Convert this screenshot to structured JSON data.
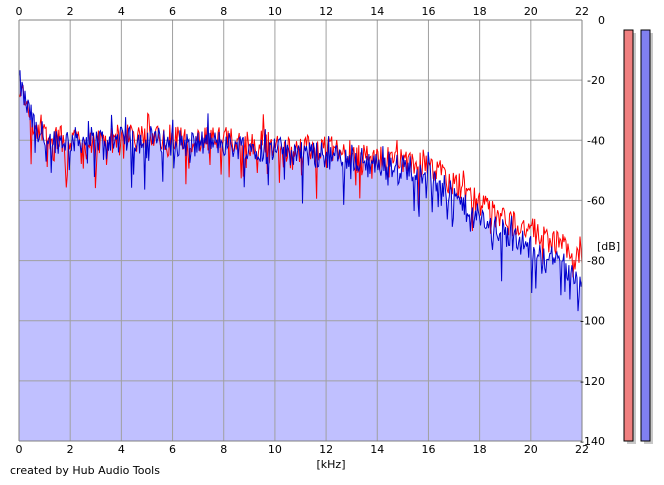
{
  "chart_data": {
    "type": "area",
    "title": "",
    "xlabel": "[kHz]",
    "ylabel": "[dB]",
    "xlim": [
      0,
      22
    ],
    "ylim": [
      -140,
      0
    ],
    "x_ticks": [
      "0",
      "2",
      "4",
      "6",
      "8",
      "10",
      "12",
      "14",
      "16",
      "18",
      "20",
      "22"
    ],
    "y_ticks": [
      "0",
      "-20",
      "-40",
      "-60",
      "-80",
      "-100",
      "-120",
      "-140"
    ],
    "grid": true,
    "x_axis_position": "top and bottom",
    "y_axis_position": "right",
    "series": [
      {
        "color": "#ff0000",
        "points": [
          [
            0.0,
            -22
          ],
          [
            0.2,
            -27
          ],
          [
            0.4,
            -32
          ],
          [
            0.6,
            -36
          ],
          [
            0.8,
            -38
          ],
          [
            1.0,
            -39
          ],
          [
            1.5,
            -40
          ],
          [
            2.0,
            -40
          ],
          [
            2.5,
            -40
          ],
          [
            3.0,
            -40
          ],
          [
            3.5,
            -40
          ],
          [
            4.0,
            -39
          ],
          [
            4.5,
            -39
          ],
          [
            5.0,
            -39
          ],
          [
            5.5,
            -39
          ],
          [
            6.0,
            -39
          ],
          [
            6.5,
            -39
          ],
          [
            7.0,
            -40
          ],
          [
            7.5,
            -40
          ],
          [
            8.0,
            -40
          ],
          [
            8.5,
            -40
          ],
          [
            9.0,
            -41
          ],
          [
            9.5,
            -41
          ],
          [
            10.0,
            -42
          ],
          [
            10.5,
            -42
          ],
          [
            11.0,
            -43
          ],
          [
            11.5,
            -43
          ],
          [
            12.0,
            -43
          ],
          [
            12.5,
            -44
          ],
          [
            13.0,
            -44
          ],
          [
            13.5,
            -45
          ],
          [
            14.0,
            -46
          ],
          [
            14.5,
            -46
          ],
          [
            15.0,
            -47
          ],
          [
            15.5,
            -47
          ],
          [
            16.0,
            -48
          ],
          [
            16.5,
            -52
          ],
          [
            17.0,
            -55
          ],
          [
            17.5,
            -58
          ],
          [
            18.0,
            -61
          ],
          [
            18.5,
            -64
          ],
          [
            19.0,
            -66
          ],
          [
            19.5,
            -68
          ],
          [
            20.0,
            -70
          ],
          [
            20.5,
            -72
          ],
          [
            21.0,
            -74
          ],
          [
            21.5,
            -76
          ],
          [
            22.0,
            -81
          ]
        ]
      },
      {
        "color": "#0000cc",
        "fill": "#c0c0ff",
        "points": [
          [
            0.0,
            -20
          ],
          [
            0.2,
            -26
          ],
          [
            0.4,
            -31
          ],
          [
            0.6,
            -35
          ],
          [
            0.8,
            -37
          ],
          [
            1.0,
            -39
          ],
          [
            1.5,
            -40
          ],
          [
            2.0,
            -40
          ],
          [
            2.5,
            -40
          ],
          [
            3.0,
            -40
          ],
          [
            3.5,
            -40
          ],
          [
            4.0,
            -40
          ],
          [
            4.5,
            -40
          ],
          [
            5.0,
            -40
          ],
          [
            5.5,
            -40
          ],
          [
            6.0,
            -41
          ],
          [
            6.5,
            -41
          ],
          [
            7.0,
            -41
          ],
          [
            7.5,
            -41
          ],
          [
            8.0,
            -41
          ],
          [
            8.5,
            -42
          ],
          [
            9.0,
            -42
          ],
          [
            9.5,
            -43
          ],
          [
            10.0,
            -43
          ],
          [
            10.5,
            -44
          ],
          [
            11.0,
            -44
          ],
          [
            11.5,
            -45
          ],
          [
            12.0,
            -45
          ],
          [
            12.5,
            -46
          ],
          [
            13.0,
            -46
          ],
          [
            13.5,
            -47
          ],
          [
            14.0,
            -48
          ],
          [
            14.5,
            -48
          ],
          [
            15.0,
            -49
          ],
          [
            15.5,
            -49
          ],
          [
            16.0,
            -51
          ],
          [
            16.5,
            -55
          ],
          [
            17.0,
            -59
          ],
          [
            17.5,
            -63
          ],
          [
            18.0,
            -66
          ],
          [
            18.5,
            -69
          ],
          [
            19.0,
            -71
          ],
          [
            19.5,
            -73
          ],
          [
            20.0,
            -76
          ],
          [
            20.5,
            -78
          ],
          [
            21.0,
            -80
          ],
          [
            21.5,
            -82
          ],
          [
            22.0,
            -89
          ]
        ]
      }
    ],
    "level_meters": [
      {
        "color": "#f08080",
        "level_db": 0
      },
      {
        "color": "#8080f0",
        "level_db": 0
      }
    ],
    "footer": "created by Hub Audio Tools"
  }
}
